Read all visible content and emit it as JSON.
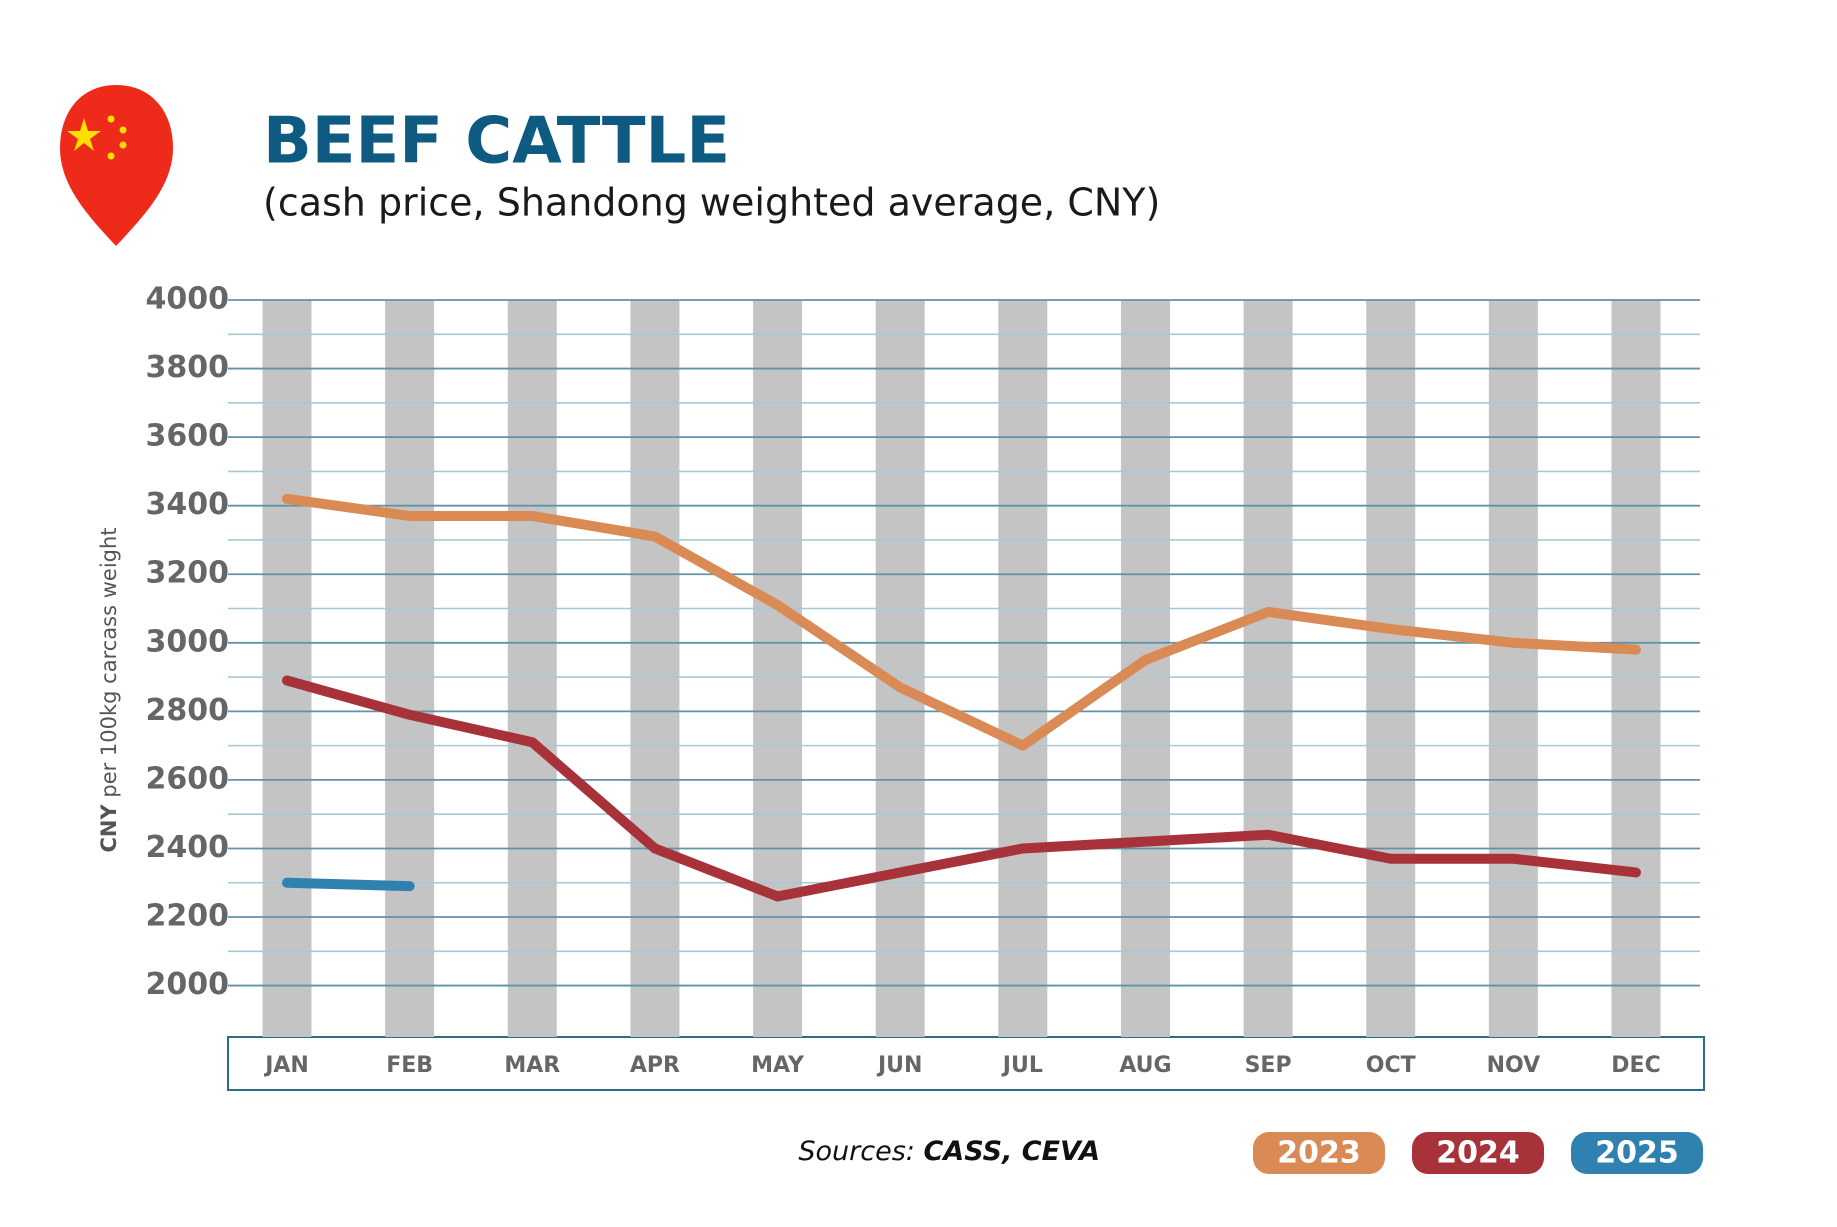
{
  "chart_data": {
    "type": "line",
    "title": "BEEF CATTLE",
    "subtitle": "(cash price, Shandong weighted average, CNY)",
    "ylabel_unit": "CNY",
    "ylabel": "per 100kg carcass weight",
    "sources_label": "Sources:",
    "sources": "CASS, CEVA",
    "categories": [
      "JAN",
      "FEB",
      "MAR",
      "APR",
      "MAY",
      "JUN",
      "JUL",
      "AUG",
      "SEP",
      "OCT",
      "NOV",
      "DEC"
    ],
    "series": [
      {
        "name": "2023",
        "color": "#d98a55",
        "values": [
          3420,
          3370,
          3370,
          3310,
          3110,
          2870,
          2700,
          2950,
          3090,
          3040,
          3000,
          2980
        ]
      },
      {
        "name": "2024",
        "color": "#a8323a",
        "values": [
          2890,
          2790,
          2710,
          2400,
          2260,
          2330,
          2400,
          2420,
          2440,
          2370,
          2370,
          2330
        ]
      },
      {
        "name": "2025",
        "color": "#2f82b0",
        "values": [
          2300,
          2290,
          null,
          null,
          null,
          null,
          null,
          null,
          null,
          null,
          null,
          null
        ]
      }
    ],
    "ylim": [
      1850,
      4000
    ],
    "yticks": [
      2000,
      2200,
      2400,
      2600,
      2800,
      3000,
      3200,
      3400,
      3600,
      3800,
      4000
    ],
    "minor_yticks": [
      2100,
      2300,
      2500,
      2700,
      2900,
      3100,
      3300,
      3500,
      3700,
      3900
    ],
    "grid": true
  }
}
